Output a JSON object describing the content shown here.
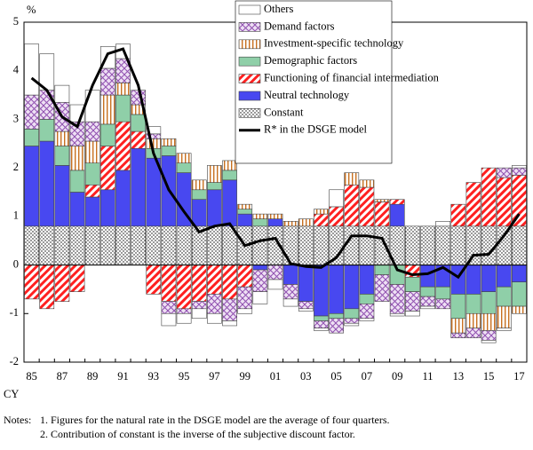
{
  "chart_data": {
    "type": "stacked-bar-line",
    "y_unit": "%",
    "x_label": "CY",
    "categories": [
      "85",
      null,
      "87",
      null,
      "89",
      null,
      "91",
      null,
      "93",
      null,
      "95",
      null,
      "97",
      null,
      "99",
      null,
      "01",
      null,
      "03",
      null,
      "05",
      null,
      "07",
      null,
      "09",
      null,
      "11",
      null,
      "13",
      null,
      "15",
      null,
      "17"
    ],
    "ylim": [
      -2,
      5
    ],
    "yticks": [
      -2,
      -1,
      0,
      1,
      2,
      3,
      4,
      5
    ],
    "series": [
      {
        "name": "Constant",
        "color": "#000000",
        "values": [
          0.8,
          0.8,
          0.8,
          0.8,
          0.8,
          0.8,
          0.8,
          0.8,
          0.8,
          0.8,
          0.8,
          0.8,
          0.8,
          0.8,
          0.8,
          0.8,
          0.8,
          0.8,
          0.8,
          0.8,
          0.8,
          0.8,
          0.8,
          0.8,
          0.8,
          0.8,
          0.8,
          0.8,
          0.8,
          0.8,
          0.8,
          0.8,
          0.8
        ]
      },
      {
        "name": "Neutral technology",
        "color": "#4848f0",
        "values": [
          1.65,
          1.75,
          1.25,
          0.7,
          0.6,
          0.75,
          1.15,
          1.6,
          1.4,
          1.45,
          1.1,
          0.55,
          0.75,
          0.95,
          0.25,
          -0.1,
          0.15,
          -0.4,
          -0.75,
          -1.05,
          -1.0,
          -0.9,
          -0.6,
          0,
          0.45,
          0,
          -0.45,
          -0.45,
          -0.6,
          -0.6,
          -0.55,
          -0.45,
          -0.35
        ]
      },
      {
        "name": "Functioning of financial intermediation",
        "color": "#ff2020",
        "values": [
          -0.7,
          -0.9,
          -0.75,
          -0.55,
          0.25,
          0.9,
          1.0,
          0.35,
          -0.6,
          -0.75,
          -0.9,
          -0.75,
          -0.6,
          -0.7,
          -0.45,
          0,
          0,
          0,
          0,
          0.25,
          0.4,
          0.85,
          0.8,
          0.5,
          0.1,
          -0.25,
          0,
          0,
          0.45,
          0.9,
          1.2,
          1.0,
          1.05
        ]
      },
      {
        "name": "Demographic factors",
        "color": "#8fcfa8",
        "values": [
          0.35,
          0.45,
          0.4,
          0.45,
          0.45,
          0.45,
          0.55,
          0.35,
          0.2,
          0.2,
          0.2,
          0.2,
          0.15,
          0.2,
          0.1,
          0.15,
          0,
          0,
          0,
          -0.1,
          -0.1,
          -0.2,
          -0.2,
          -0.2,
          -0.4,
          -0.3,
          -0.2,
          -0.25,
          -0.5,
          -0.4,
          -0.45,
          -0.4,
          -0.5
        ]
      },
      {
        "name": "Investment-specific technology",
        "color": "#c87020",
        "values": [
          0,
          0,
          0.3,
          0.5,
          0.45,
          0.6,
          0.25,
          0.2,
          0.2,
          0.15,
          0.2,
          0.2,
          0.35,
          0.2,
          0.1,
          0.1,
          0.1,
          0.1,
          0.15,
          0.1,
          0,
          0.25,
          0.15,
          0.05,
          0,
          0,
          0,
          0,
          -0.3,
          -0.3,
          -0.35,
          -0.45,
          -0.15
        ]
      },
      {
        "name": "Demand factors",
        "color": "#9050b0",
        "values": [
          0.7,
          0.6,
          0.6,
          0.5,
          0.4,
          0.55,
          0.5,
          0.3,
          0.1,
          -0.25,
          -0.1,
          -0.15,
          -0.4,
          -0.45,
          -0.45,
          -0.45,
          -0.3,
          -0.3,
          -0.15,
          -0.15,
          -0.3,
          -0.1,
          -0.3,
          -0.55,
          -0.6,
          -0.4,
          -0.2,
          -0.2,
          -0.1,
          -0.2,
          -0.2,
          0.2,
          0.15
        ]
      },
      {
        "name": "Others",
        "color": "#ffffff",
        "values": [
          1.05,
          0.75,
          0.35,
          0.35,
          0.65,
          0.45,
          0.3,
          0,
          0.15,
          -0.25,
          -0.2,
          -0.2,
          -0.2,
          -0.1,
          -0.1,
          -0.25,
          -0.2,
          -0.15,
          -0.05,
          -0.05,
          0.35,
          -0.05,
          -0.05,
          0,
          -0.05,
          -0.1,
          -0.05,
          0.1,
          0,
          0,
          -0.05,
          -0.05,
          0.05
        ]
      }
    ],
    "line": {
      "name": "R* in the DSGE model",
      "color": "#000000",
      "values": [
        3.85,
        3.6,
        3.05,
        2.85,
        3.7,
        4.35,
        4.45,
        3.7,
        2.3,
        1.55,
        1.1,
        0.68,
        0.8,
        0.85,
        0.4,
        0.5,
        0.55,
        0.03,
        -0.03,
        -0.05,
        0.15,
        0.6,
        0.6,
        0.55,
        -0.1,
        -0.2,
        -0.18,
        -0.05,
        -0.25,
        0.2,
        0.22,
        0.6,
        1.05
      ]
    },
    "notes_label": "Notes:",
    "notes": [
      "1. Figures for the natural rate in the DSGE  model are the average of four quarters.",
      "2. Contribution of constant is the inverse of the subjective discount factor."
    ]
  }
}
